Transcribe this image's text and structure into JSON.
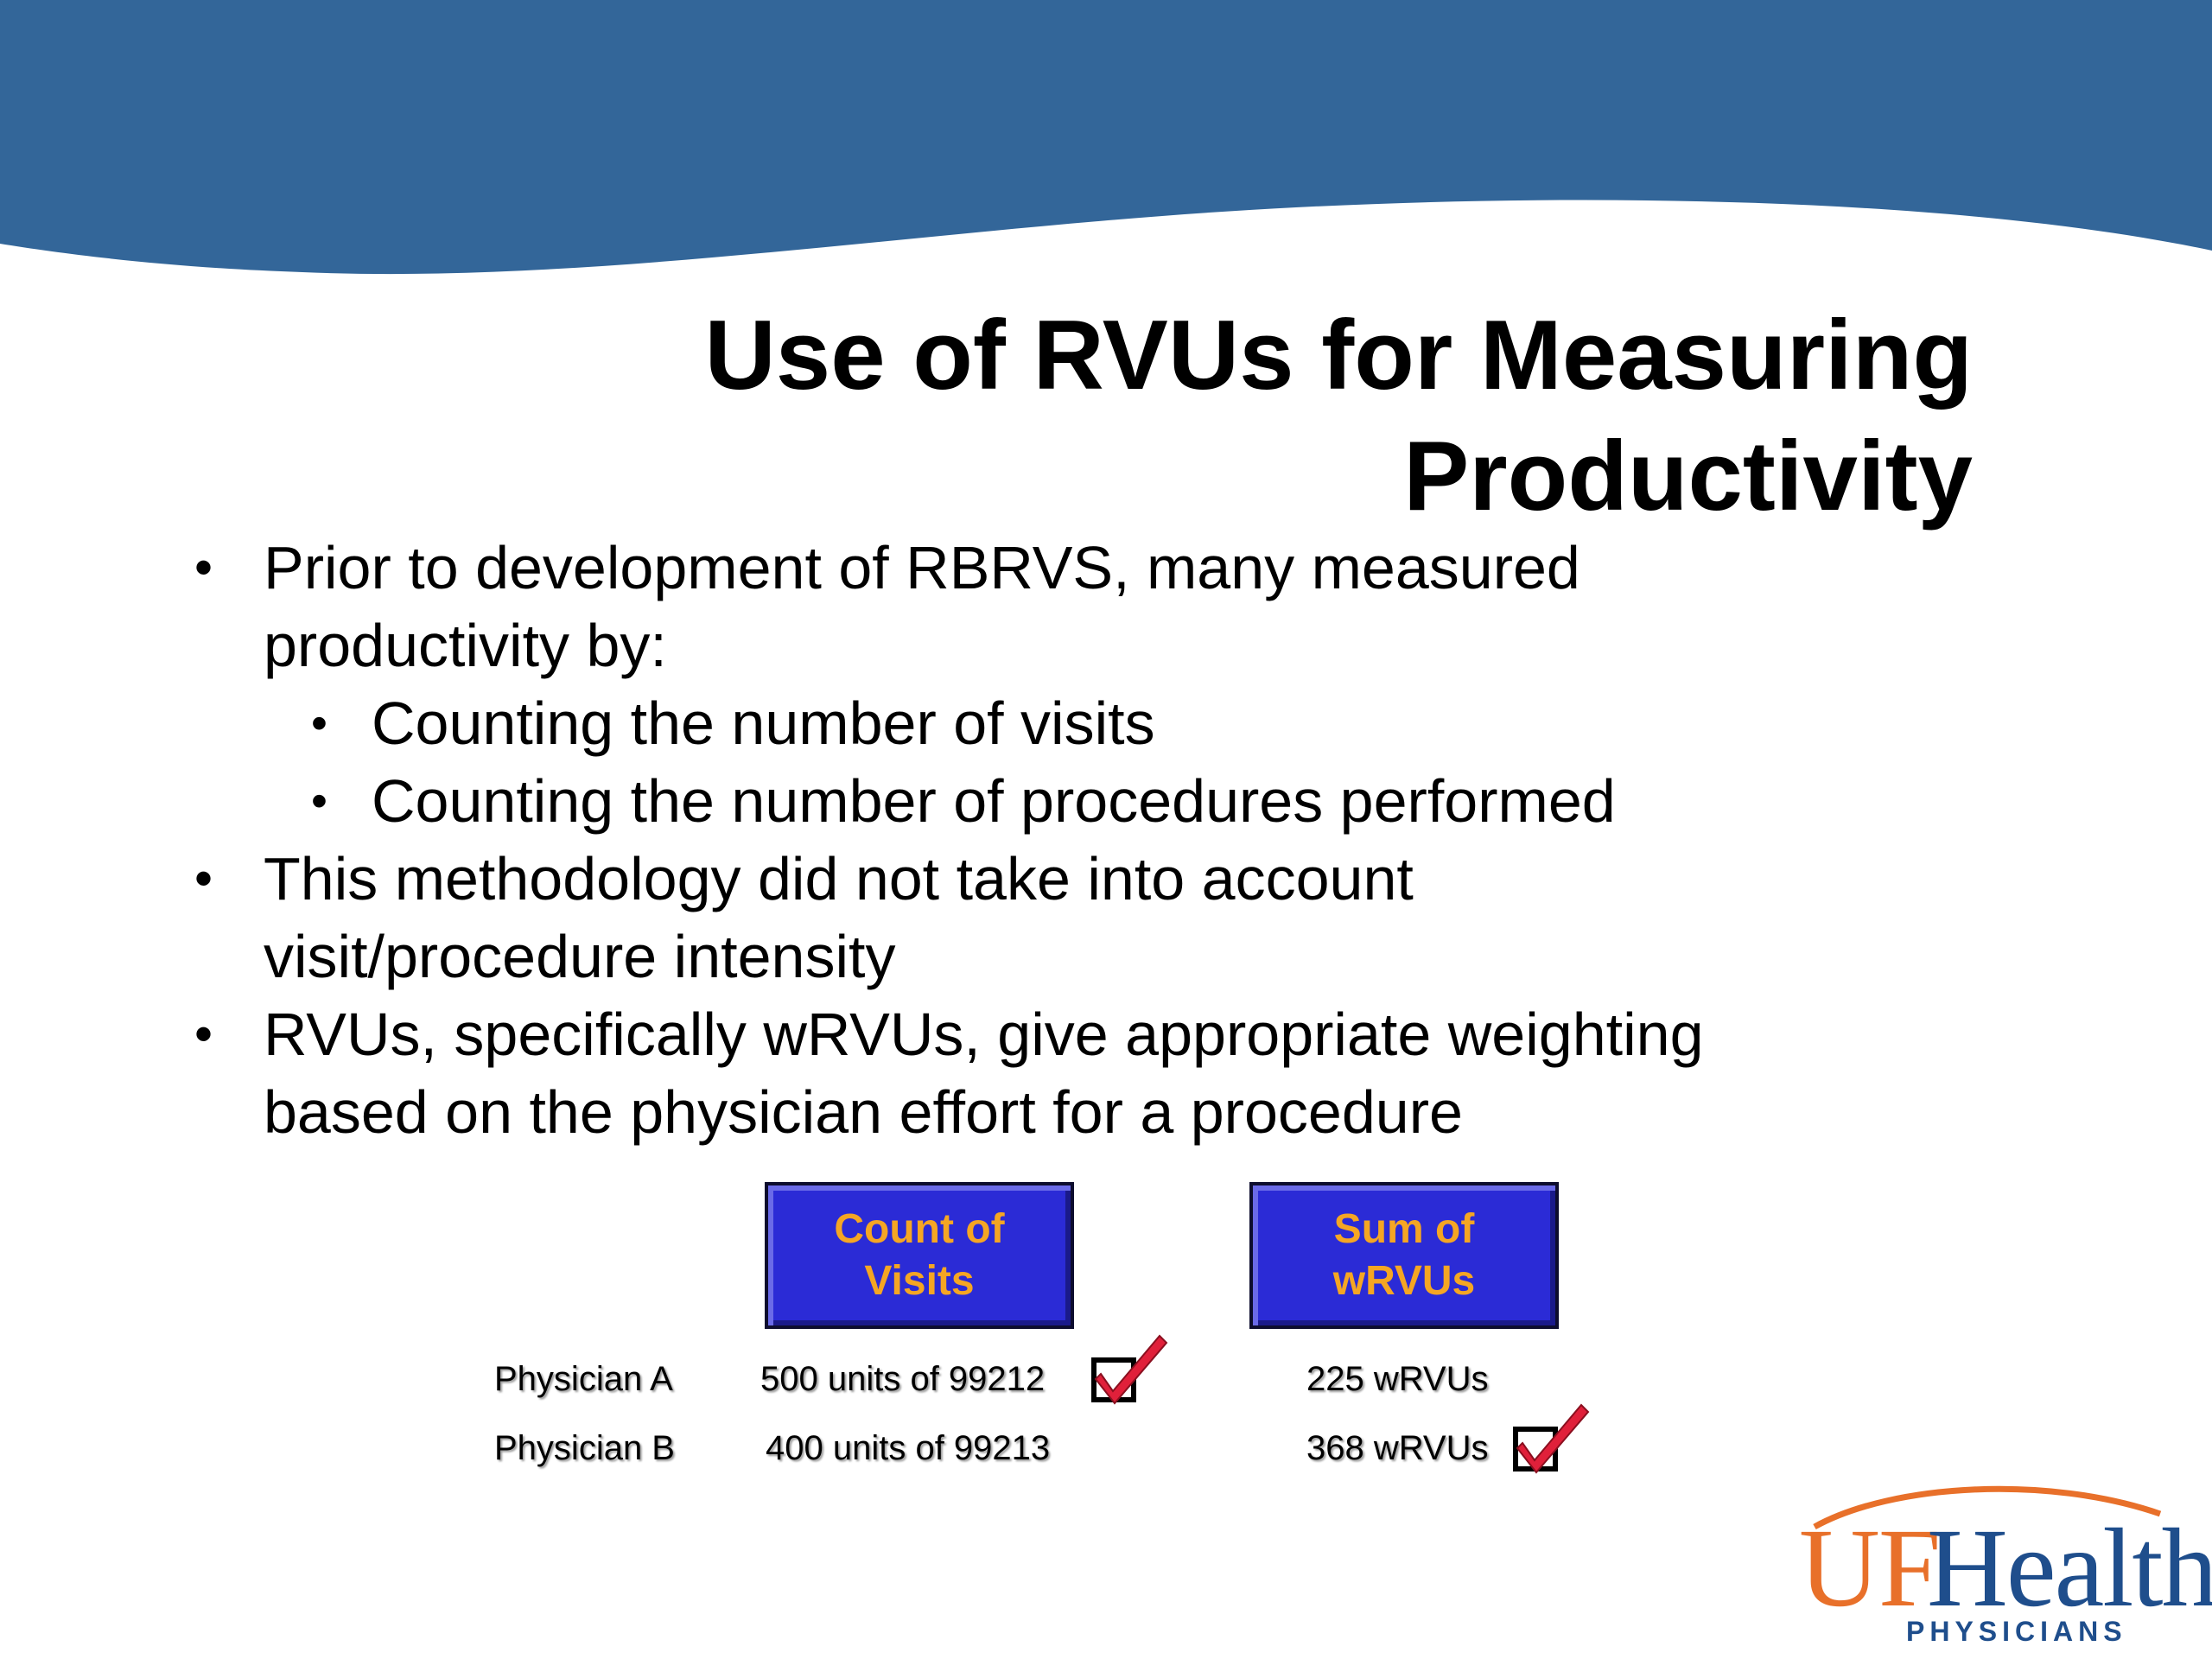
{
  "slide": {
    "title_line1": "Use of RVUs for Measuring",
    "title_line2": "Productivity",
    "bullets": [
      {
        "line1": "Prior to development of RBRVS, many measured",
        "line2": "productivity by:",
        "sub": [
          "Counting the number of visits",
          "Counting the number of procedures performed"
        ]
      },
      {
        "line1": "This methodology did not take into account",
        "line2": "visit/procedure intensity"
      },
      {
        "line1": "RVUs, specifically wRVUs, give appropriate weighting",
        "line2": "based on the physician effort for a procedure"
      }
    ],
    "bullet_glyph": "•"
  },
  "comparison": {
    "header_visits_line1": "Count of",
    "header_visits_line2": "Visits",
    "header_wrvu_line1": "Sum of",
    "header_wrvu_line2": "wRVUs",
    "rows": [
      {
        "label": "Physician A",
        "visits": "500 units of  99212",
        "wrvus": "225 wRVUs",
        "checked": "visits"
      },
      {
        "label": "Physician B",
        "visits": "400 units of 99213",
        "wrvus": "368 wRVUs",
        "checked": "wrvus"
      }
    ]
  },
  "logo": {
    "uf": "UF",
    "health": "Health",
    "sub": "PHYSICIANS"
  },
  "colors": {
    "header_band": "#336699",
    "box_fill": "#2b2bd6",
    "box_text": "#f5a623",
    "check_mark": "#e0203a",
    "logo_orange": "#e8702a",
    "logo_blue": "#1f4e8c"
  }
}
